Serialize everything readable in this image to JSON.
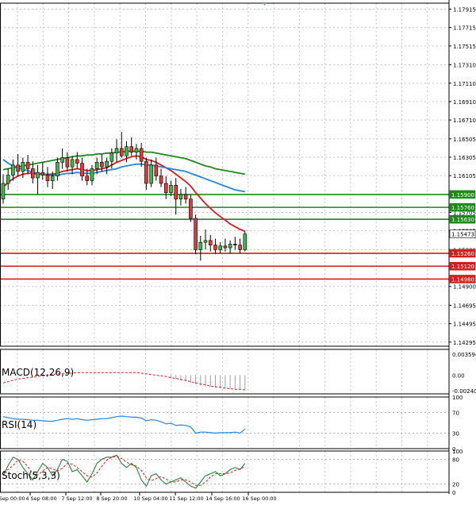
{
  "chart_data": {
    "type": "candlestick",
    "price_axis": {
      "ticks": [
        "1.17915",
        "1.17715",
        "1.17515",
        "1.17310",
        "1.17110",
        "1.16910",
        "1.16710",
        "1.16505",
        "1.16305",
        "1.16105",
        "1.15705",
        "1.15505",
        "1.15300",
        "1.14900",
        "1.14695",
        "1.14495",
        "1.14295"
      ],
      "ylim": [
        1.1425,
        1.1798
      ]
    },
    "x_ticks": [
      "3 Sep 00:00",
      "4 Sep 08:00",
      "7 Sep 12:00",
      "8 Sep 20:00",
      "10 Sep 04:00",
      "11 Sep 12:00",
      "14 Sep 16:00",
      "16 Sep 00:00"
    ],
    "candles": [
      [
        1.1585,
        1.1612,
        1.158,
        1.1602
      ],
      [
        1.1602,
        1.1618,
        1.1595,
        1.1611
      ],
      [
        1.1611,
        1.1628,
        1.1605,
        1.1622
      ],
      [
        1.1622,
        1.1634,
        1.161,
        1.1615
      ],
      [
        1.1615,
        1.163,
        1.1608,
        1.1625
      ],
      [
        1.1625,
        1.1633,
        1.1612,
        1.1618
      ],
      [
        1.1618,
        1.1626,
        1.1602,
        1.1608
      ],
      [
        1.1608,
        1.1622,
        1.159,
        1.1614
      ],
      [
        1.1614,
        1.1625,
        1.1606,
        1.1611
      ],
      [
        1.1611,
        1.162,
        1.1598,
        1.1605
      ],
      [
        1.1605,
        1.1615,
        1.1596,
        1.161
      ],
      [
        1.161,
        1.163,
        1.1605,
        1.1625
      ],
      [
        1.1625,
        1.164,
        1.1618,
        1.163
      ],
      [
        1.163,
        1.1636,
        1.1615,
        1.162
      ],
      [
        1.162,
        1.1632,
        1.1612,
        1.1628
      ],
      [
        1.1628,
        1.1636,
        1.1618,
        1.1624
      ],
      [
        1.1624,
        1.163,
        1.1605,
        1.161
      ],
      [
        1.161,
        1.1618,
        1.16,
        1.1605
      ],
      [
        1.1605,
        1.1622,
        1.16,
        1.1618
      ],
      [
        1.1618,
        1.163,
        1.1612,
        1.1625
      ],
      [
        1.1625,
        1.1634,
        1.1615,
        1.162
      ],
      [
        1.162,
        1.163,
        1.1612,
        1.1626
      ],
      [
        1.1626,
        1.164,
        1.1618,
        1.1635
      ],
      [
        1.1635,
        1.165,
        1.1625,
        1.164
      ],
      [
        1.164,
        1.1658,
        1.163,
        1.1632
      ],
      [
        1.1632,
        1.1648,
        1.1625,
        1.1642
      ],
      [
        1.1642,
        1.1652,
        1.1632,
        1.1636
      ],
      [
        1.1636,
        1.1645,
        1.1628,
        1.164
      ],
      [
        1.164,
        1.1646,
        1.162,
        1.1626
      ],
      [
        1.1626,
        1.163,
        1.1595,
        1.1602
      ],
      [
        1.1602,
        1.1628,
        1.1598,
        1.1622
      ],
      [
        1.1622,
        1.163,
        1.1605,
        1.161
      ],
      [
        1.161,
        1.1618,
        1.1598,
        1.1602
      ],
      [
        1.1602,
        1.161,
        1.1585,
        1.1592
      ],
      [
        1.1592,
        1.1605,
        1.1588,
        1.16
      ],
      [
        1.16,
        1.1608,
        1.1568,
        1.1585
      ],
      [
        1.1585,
        1.1596,
        1.1578,
        1.159
      ],
      [
        1.159,
        1.1598,
        1.158,
        1.1585
      ],
      [
        1.1585,
        1.159,
        1.156,
        1.1564
      ],
      [
        1.1564,
        1.1568,
        1.1525,
        1.153
      ],
      [
        1.153,
        1.1545,
        1.1518,
        1.1538
      ],
      [
        1.1538,
        1.1552,
        1.153,
        1.154
      ],
      [
        1.154,
        1.1546,
        1.1528,
        1.1535
      ],
      [
        1.1535,
        1.1542,
        1.1525,
        1.153
      ],
      [
        1.153,
        1.1538,
        1.1526,
        1.1534
      ],
      [
        1.1534,
        1.1542,
        1.1528,
        1.1532
      ],
      [
        1.1532,
        1.154,
        1.1526,
        1.1536
      ],
      [
        1.1536,
        1.1544,
        1.153,
        1.1535
      ],
      [
        1.1535,
        1.1542,
        1.1526,
        1.153
      ],
      [
        1.153,
        1.155,
        1.1528,
        1.1547
      ]
    ],
    "moving_averages": [
      {
        "color": "#d81b1b",
        "values": [
          1.1598,
          1.1603,
          1.1607,
          1.161,
          1.1612,
          1.1613,
          1.1613,
          1.1612,
          1.1612,
          1.1612,
          1.1612,
          1.1613,
          1.1615,
          1.1616,
          1.1617,
          1.1618,
          1.1617,
          1.1616,
          1.1616,
          1.1617,
          1.1618,
          1.1619,
          1.1622,
          1.1625,
          1.1627,
          1.1629,
          1.1631,
          1.1632,
          1.1631,
          1.1628,
          1.1627,
          1.1625,
          1.1622,
          1.1619,
          1.1616,
          1.1612,
          1.1608,
          1.1604,
          1.1599,
          1.1592,
          1.1586,
          1.158,
          1.1575,
          1.157,
          1.1566,
          1.1562,
          1.1558,
          1.1555,
          1.1552,
          1.155
        ]
      },
      {
        "color": "#1e88e5",
        "values": [
          1.1628,
          1.1624,
          1.1621,
          1.1619,
          1.1617,
          1.1616,
          1.1614,
          1.1613,
          1.1612,
          1.1611,
          1.1611,
          1.1611,
          1.1612,
          1.1613,
          1.1613,
          1.1614,
          1.1613,
          1.1613,
          1.1613,
          1.1614,
          1.1615,
          1.1616,
          1.1617,
          1.1618,
          1.162,
          1.1621,
          1.1622,
          1.1623,
          1.1623,
          1.1622,
          1.1622,
          1.1621,
          1.162,
          1.1619,
          1.1618,
          1.1617,
          1.1616,
          1.1615,
          1.1613,
          1.1611,
          1.1609,
          1.1607,
          1.1605,
          1.1603,
          1.1601,
          1.1599,
          1.1597,
          1.1595,
          1.1594,
          1.1593
        ]
      },
      {
        "color": "#1b8a1b",
        "values": [
          1.1617,
          1.1618,
          1.1619,
          1.162,
          1.1621,
          1.1622,
          1.1623,
          1.1624,
          1.1625,
          1.1626,
          1.1627,
          1.1628,
          1.1629,
          1.163,
          1.1631,
          1.1632,
          1.1632,
          1.1633,
          1.1633,
          1.1634,
          1.1634,
          1.1635,
          1.1635,
          1.1636,
          1.1636,
          1.1637,
          1.1637,
          1.1637,
          1.1637,
          1.1636,
          1.1636,
          1.1635,
          1.1634,
          1.1633,
          1.1632,
          1.1631,
          1.163,
          1.1629,
          1.1627,
          1.1625,
          1.1623,
          1.1621,
          1.162,
          1.1618,
          1.1617,
          1.1616,
          1.1615,
          1.1614,
          1.1613,
          1.1612
        ]
      }
    ],
    "levels": [
      {
        "price": 1.159,
        "label": "1.15900",
        "color": "#1b8a1b"
      },
      {
        "price": 1.1576,
        "label": "1.15760",
        "color": "#1b8a1b"
      },
      {
        "price": 1.1563,
        "label": "1.15630",
        "color": "#1b8a1b"
      },
      {
        "price": 1.1526,
        "label": "1.15260",
        "color": "#d81b1b"
      },
      {
        "price": 1.1512,
        "label": "1.15120",
        "color": "#d81b1b"
      },
      {
        "price": 1.1498,
        "label": "1.14980",
        "color": "#d81b1b"
      }
    ],
    "current_price": {
      "price": 1.1547,
      "label": "1.15473"
    },
    "indicators": [
      {
        "name": "MACD(12,26,9)",
        "ticks": [
          "0.003594",
          "0.00",
          "-0.002405"
        ],
        "ylim": [
          -0.0029,
          0.004
        ],
        "signal": [
          -0.0012,
          -0.001,
          -0.0008,
          -0.0006,
          -0.0005,
          -0.0004,
          -0.0003,
          -0.0002,
          -0.0001,
          0.0,
          0.0001,
          0.0002,
          0.0002,
          0.0003,
          0.0003,
          0.0004,
          0.0004,
          0.0004,
          0.0004,
          0.0004,
          0.0004,
          0.0004,
          0.0004,
          0.0004,
          0.0004,
          0.0004,
          0.0004,
          0.0004,
          0.0003,
          0.0002,
          0.0001,
          0.0,
          -0.0001,
          -0.0002,
          -0.0004,
          -0.0005,
          -0.0007,
          -0.0008,
          -0.001,
          -0.0012,
          -0.0014,
          -0.0015,
          -0.0017,
          -0.0018,
          -0.0019,
          -0.002,
          -0.0021,
          -0.0022,
          -0.0022,
          -0.0023
        ],
        "hist": [
          0,
          0,
          0,
          0,
          0,
          0,
          0,
          0,
          0,
          0,
          0,
          0,
          0,
          0,
          0,
          0,
          0,
          0,
          0,
          0,
          0,
          0,
          0,
          0,
          0,
          0,
          0,
          0,
          0,
          0,
          0,
          0,
          0,
          0,
          -0.0004,
          -0.0006,
          -0.0008,
          -0.001,
          -0.0012,
          -0.0014,
          -0.0016,
          -0.0017,
          -0.0018,
          -0.0019,
          -0.002,
          -0.0021,
          -0.0021,
          -0.0022,
          -0.0022,
          -0.0022
        ]
      },
      {
        "name": "RSI(14)",
        "ticks": [
          "100",
          "70",
          "30",
          "0"
        ],
        "ylim": [
          0,
          100
        ],
        "values": [
          62,
          60,
          58,
          57,
          57,
          56,
          55,
          55,
          54,
          53,
          53,
          55,
          57,
          58,
          57,
          58,
          56,
          55,
          56,
          57,
          58,
          58,
          60,
          62,
          63,
          62,
          61,
          61,
          59,
          54,
          56,
          55,
          52,
          48,
          49,
          45,
          46,
          45,
          42,
          30,
          32,
          32,
          31,
          30,
          31,
          31,
          31,
          32,
          30,
          38
        ]
      },
      {
        "name": "Stoch(5,3,3)",
        "ticks": [
          "100",
          "80",
          "20",
          "0"
        ],
        "ylim": [
          0,
          100
        ],
        "k": [
          40,
          65,
          85,
          80,
          60,
          45,
          30,
          50,
          70,
          60,
          40,
          55,
          80,
          75,
          50,
          55,
          40,
          25,
          45,
          70,
          80,
          85,
          85,
          90,
          70,
          60,
          70,
          60,
          30,
          15,
          40,
          45,
          30,
          20,
          25,
          30,
          35,
          25,
          15,
          10,
          25,
          40,
          45,
          50,
          40,
          45,
          55,
          60,
          55,
          70
        ],
        "d": [
          50,
          55,
          65,
          78,
          75,
          62,
          45,
          42,
          52,
          60,
          57,
          52,
          58,
          70,
          68,
          60,
          50,
          40,
          37,
          47,
          63,
          78,
          85,
          87,
          82,
          73,
          67,
          63,
          53,
          35,
          28,
          33,
          38,
          32,
          25,
          25,
          30,
          30,
          25,
          17,
          17,
          25,
          37,
          45,
          45,
          45,
          47,
          53,
          57,
          62
        ]
      }
    ]
  }
}
